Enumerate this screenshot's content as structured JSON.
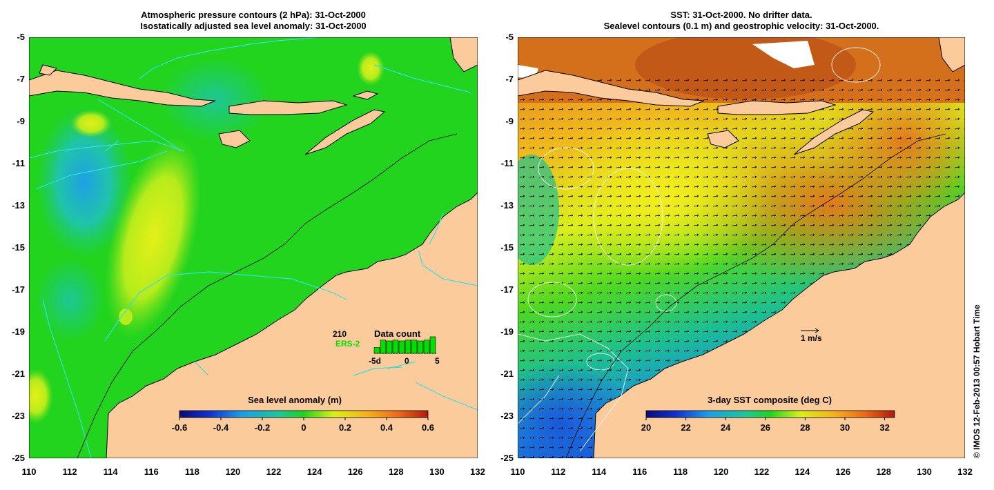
{
  "left_panel": {
    "title_line1": "Atmospheric pressure contours (2 hPa): 31-Oct-2000",
    "title_line2": "Isostatically adjusted sea level anomaly: 31-Oct-2000",
    "y_ticks": [
      "-5",
      "-7",
      "-9",
      "-11",
      "-13",
      "-15",
      "-17",
      "-19",
      "-21",
      "-23",
      "-25"
    ],
    "x_ticks": [
      "110",
      "112",
      "114",
      "116",
      "118",
      "120",
      "122",
      "124",
      "126",
      "128",
      "130",
      "132"
    ],
    "colorbar": {
      "label": "Sea level anomaly (m)",
      "ticks": [
        "-0.6",
        "-0.4",
        "-0.2",
        "0",
        "0.2",
        "0.4",
        "0.6"
      ],
      "range": [
        -0.6,
        0.6
      ]
    },
    "data_count": {
      "title": "Data count",
      "max_label": "210",
      "satellite": "ERS-2",
      "satellite_color": "#00e000",
      "x_ticks": [
        "-5d",
        "0",
        "5"
      ],
      "bar_levels": [
        0.35,
        0.8,
        0.75,
        0.8,
        0.75,
        0.8,
        0.8,
        0.75,
        0.8,
        1.0
      ]
    }
  },
  "right_panel": {
    "title_line1": "SST: 31-Oct-2000. No drifter data.",
    "title_line2": "Sealevel contours (0.1 m) and geostrophic velocity: 31-Oct-2000.",
    "y_ticks": [
      "-5",
      "-7",
      "-9",
      "-11",
      "-13",
      "-15",
      "-17",
      "-19",
      "-21",
      "-23",
      "-25"
    ],
    "x_ticks": [
      "110",
      "112",
      "114",
      "116",
      "118",
      "120",
      "122",
      "124",
      "126",
      "128",
      "130",
      "132"
    ],
    "colorbar": {
      "label": "3-day SST composite (deg C)",
      "ticks": [
        "20",
        "22",
        "24",
        "26",
        "28",
        "30",
        "32"
      ],
      "range": [
        20,
        32.5
      ]
    },
    "velocity_scale_label": "1 m/s"
  },
  "credit": "© IMOS 12-Feb-2013 00:57 Hobart Time",
  "colors": {
    "land": "#fbcb9b",
    "coast_line": "#000000",
    "boundary_line": "#33e0e0",
    "slope_contour": "#000000",
    "sea_level_base": "#22d41e",
    "sst_warm": "#e27a1a",
    "sst_mid": "#d6f01e",
    "sst_cool": "#1b9fe0"
  }
}
